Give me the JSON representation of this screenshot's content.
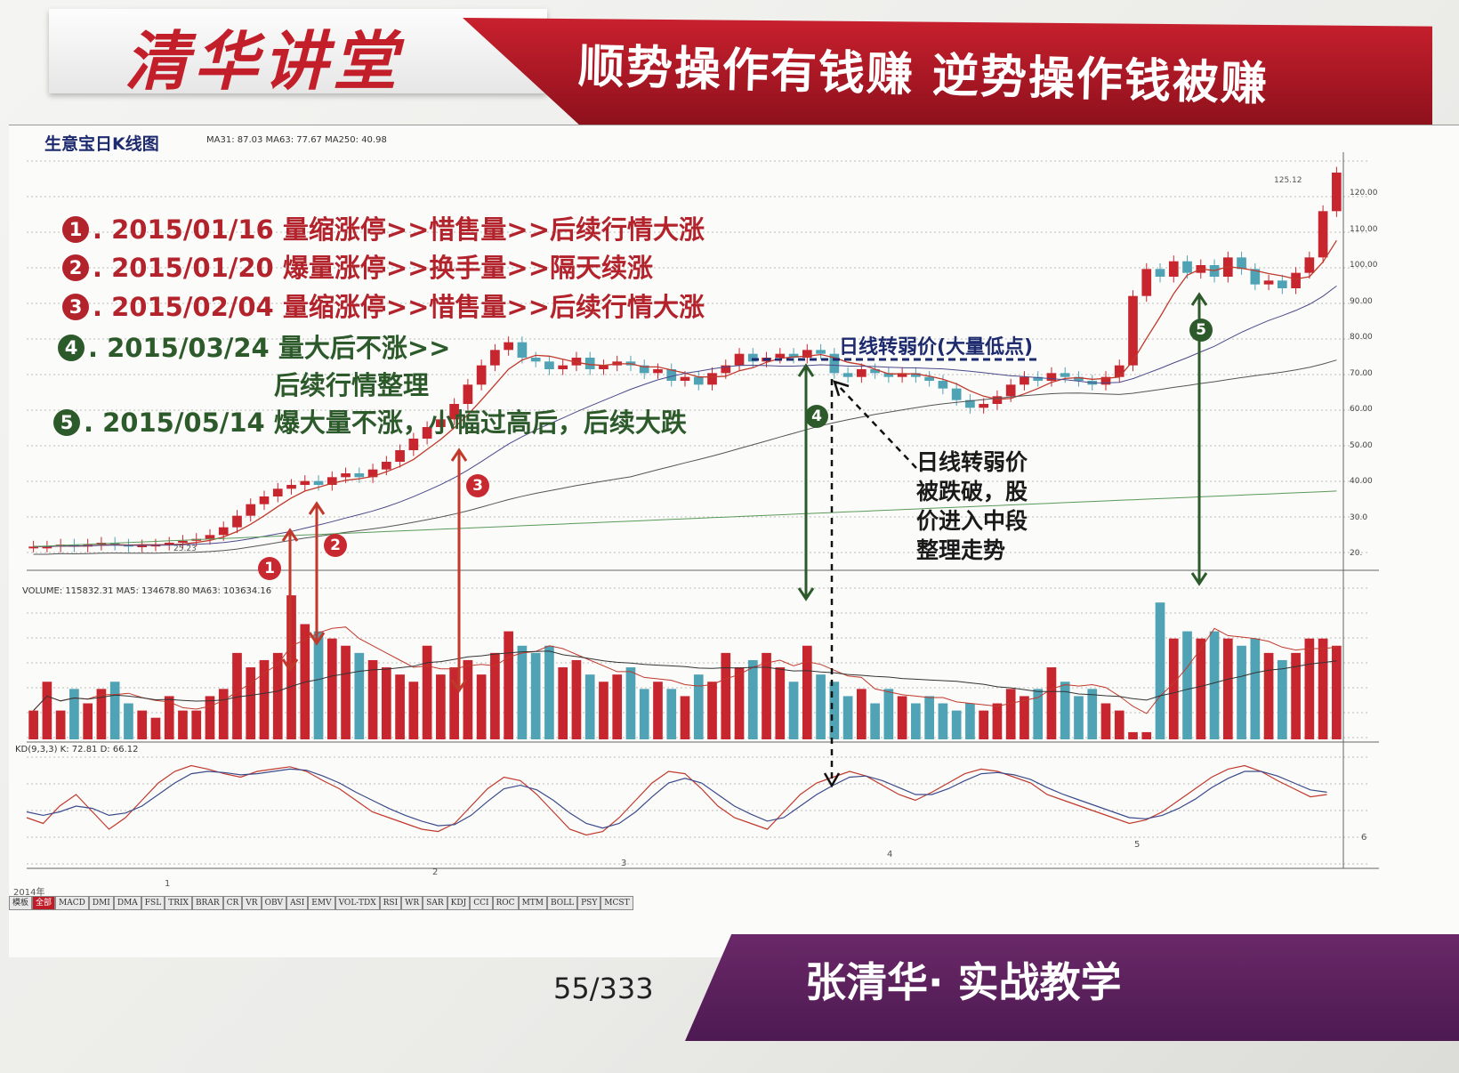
{
  "header": {
    "logo_text": "清华讲堂",
    "slogan": "顺势操作有钱赚  逆势操作钱被赚"
  },
  "chart_header": {
    "title": "生意宝日K线图",
    "ma_readout": "MA31: 87.03  MA63: 77.67  MA250: 40.98"
  },
  "annotations": [
    {
      "num": "1",
      "text": ". 2015/01/16 量缩涨停>>惜售量>>后续行情大涨",
      "color": "red"
    },
    {
      "num": "2",
      "text": ". 2015/01/20 爆量涨停>>换手量>>隔天续涨",
      "color": "red"
    },
    {
      "num": "3",
      "text": ". 2015/02/04 量缩涨停>>惜售量>>后续行情大涨",
      "color": "red"
    },
    {
      "num": "4",
      "text": ". 2015/03/24 量大后不涨>>",
      "color": "green"
    },
    {
      "num": "",
      "text": "后续行情整理",
      "color": "green"
    },
    {
      "num": "5",
      "text": ". 2015/05/14 爆大量不涨，小幅过高后，后续大跌",
      "color": "green"
    }
  ],
  "chart_labels": {
    "weak_price": "日线转弱价(大量低点)",
    "note_lines": [
      "日线转弱价",
      "被跌破，股",
      "价进入中段",
      "整理走势"
    ],
    "low_price": "25.23",
    "high_price": "125.12"
  },
  "markers": [
    "1",
    "2",
    "3",
    "4",
    "5"
  ],
  "price_axis": [
    "120.00",
    "110.00",
    "100.00",
    "90.00",
    "80.00",
    "70.00",
    "60.00",
    "50.00",
    "40.00",
    "30.0",
    "20."
  ],
  "volume_readout": "VOLUME: 115832.31  MA5: 134678.80  MA63: 103634.16",
  "kd_readout": "KD(9,3,3)  K: 72.81  D: 66.12",
  "time_axis": {
    "year": "2014年",
    "months": [
      "1",
      "2",
      "3",
      "4",
      "5",
      "6"
    ]
  },
  "indicator_tabs": [
    "模板",
    "全部",
    "MACD",
    "DMI",
    "DMA",
    "FSL",
    "TRIX",
    "BRAR",
    "CR",
    "VR",
    "OBV",
    "ASI",
    "EMV",
    "VOL-TDX",
    "RSI",
    "WR",
    "SAR",
    "KDJ",
    "CCI",
    "ROC",
    "MTM",
    "BOLL",
    "PSY",
    "MCST"
  ],
  "footer": {
    "page": "55/333",
    "brand": "张清华· 实战教学"
  },
  "colors": {
    "up": "#c8262f",
    "down": "#4fa3b5",
    "ma": "#b03030"
  },
  "chart_data": {
    "type": "candlestick",
    "title": "生意宝日K线图",
    "x_range": [
      "2014-12",
      "2015-06"
    ],
    "y_range": [
      20,
      125
    ],
    "close_series": [
      25,
      25,
      25.5,
      25,
      25.5,
      26,
      25.5,
      25,
      25.3,
      25.5,
      26,
      26.5,
      27,
      28,
      30,
      33,
      36,
      38,
      40,
      41,
      42,
      41,
      43,
      44,
      43,
      45,
      47,
      50,
      53,
      56,
      58,
      62,
      67,
      72,
      76,
      78,
      74,
      73,
      71,
      72,
      74,
      71,
      72,
      73,
      72,
      70,
      71,
      68,
      69,
      67,
      70,
      72,
      75,
      73,
      74,
      75,
      74,
      76,
      75,
      70,
      69,
      71,
      70,
      69,
      70,
      69,
      68,
      66,
      63,
      61,
      62,
      64,
      67,
      69,
      68,
      70,
      69,
      68,
      67,
      69,
      72,
      90,
      97,
      95,
      99,
      96,
      98,
      95,
      100,
      97,
      93,
      94,
      92,
      96,
      100,
      112,
      122
    ],
    "volume_series": [
      4,
      8,
      4,
      7,
      5,
      7,
      8,
      5,
      4,
      3,
      6,
      4,
      4,
      6,
      7,
      12,
      10,
      11,
      12,
      20,
      16,
      15,
      14,
      13,
      12,
      11,
      10,
      9,
      8,
      13,
      9,
      10,
      11,
      9,
      12,
      15,
      13,
      12,
      13,
      10,
      11,
      9,
      8,
      9,
      10,
      7,
      8,
      7,
      6,
      9,
      8,
      12,
      10,
      11,
      12,
      10,
      8,
      13,
      9,
      8,
      6,
      7,
      5,
      7,
      6,
      5,
      6,
      5,
      4,
      5,
      4,
      5,
      7,
      6,
      7,
      10,
      8,
      6,
      7,
      5,
      4,
      1,
      1,
      19,
      14,
      15,
      14,
      15,
      14,
      13,
      14,
      12,
      11,
      12,
      14,
      14,
      13
    ],
    "k_series": [
      40,
      35,
      50,
      60,
      45,
      30,
      40,
      55,
      70,
      80,
      85,
      82,
      78,
      75,
      80,
      82,
      84,
      80,
      72,
      65,
      55,
      45,
      40,
      35,
      30,
      28,
      35,
      50,
      65,
      75,
      72,
      60,
      45,
      30,
      25,
      28,
      40,
      55,
      70,
      80,
      78,
      65,
      50,
      40,
      35,
      30,
      45,
      60,
      70,
      75,
      80,
      76,
      68,
      60,
      55,
      62,
      70,
      78,
      82,
      80,
      75,
      70,
      60,
      55,
      50,
      45,
      40,
      35,
      38,
      45,
      55,
      65,
      75,
      82,
      85,
      80,
      72,
      65,
      58,
      60
    ],
    "d_series": [
      45,
      42,
      45,
      50,
      48,
      42,
      44,
      50,
      60,
      70,
      78,
      80,
      79,
      77,
      78,
      80,
      82,
      81,
      76,
      70,
      62,
      55,
      48,
      42,
      37,
      33,
      34,
      42,
      54,
      65,
      68,
      64,
      55,
      44,
      35,
      31,
      35,
      45,
      58,
      70,
      74,
      70,
      60,
      50,
      43,
      37,
      40,
      50,
      60,
      68,
      75,
      76,
      72,
      66,
      60,
      60,
      65,
      72,
      78,
      79,
      77,
      73,
      66,
      60,
      55,
      50,
      45,
      40,
      39,
      42,
      48,
      56,
      66,
      74,
      80,
      80,
      76,
      70,
      64,
      62
    ],
    "xlabel": "",
    "ylabel": ""
  }
}
